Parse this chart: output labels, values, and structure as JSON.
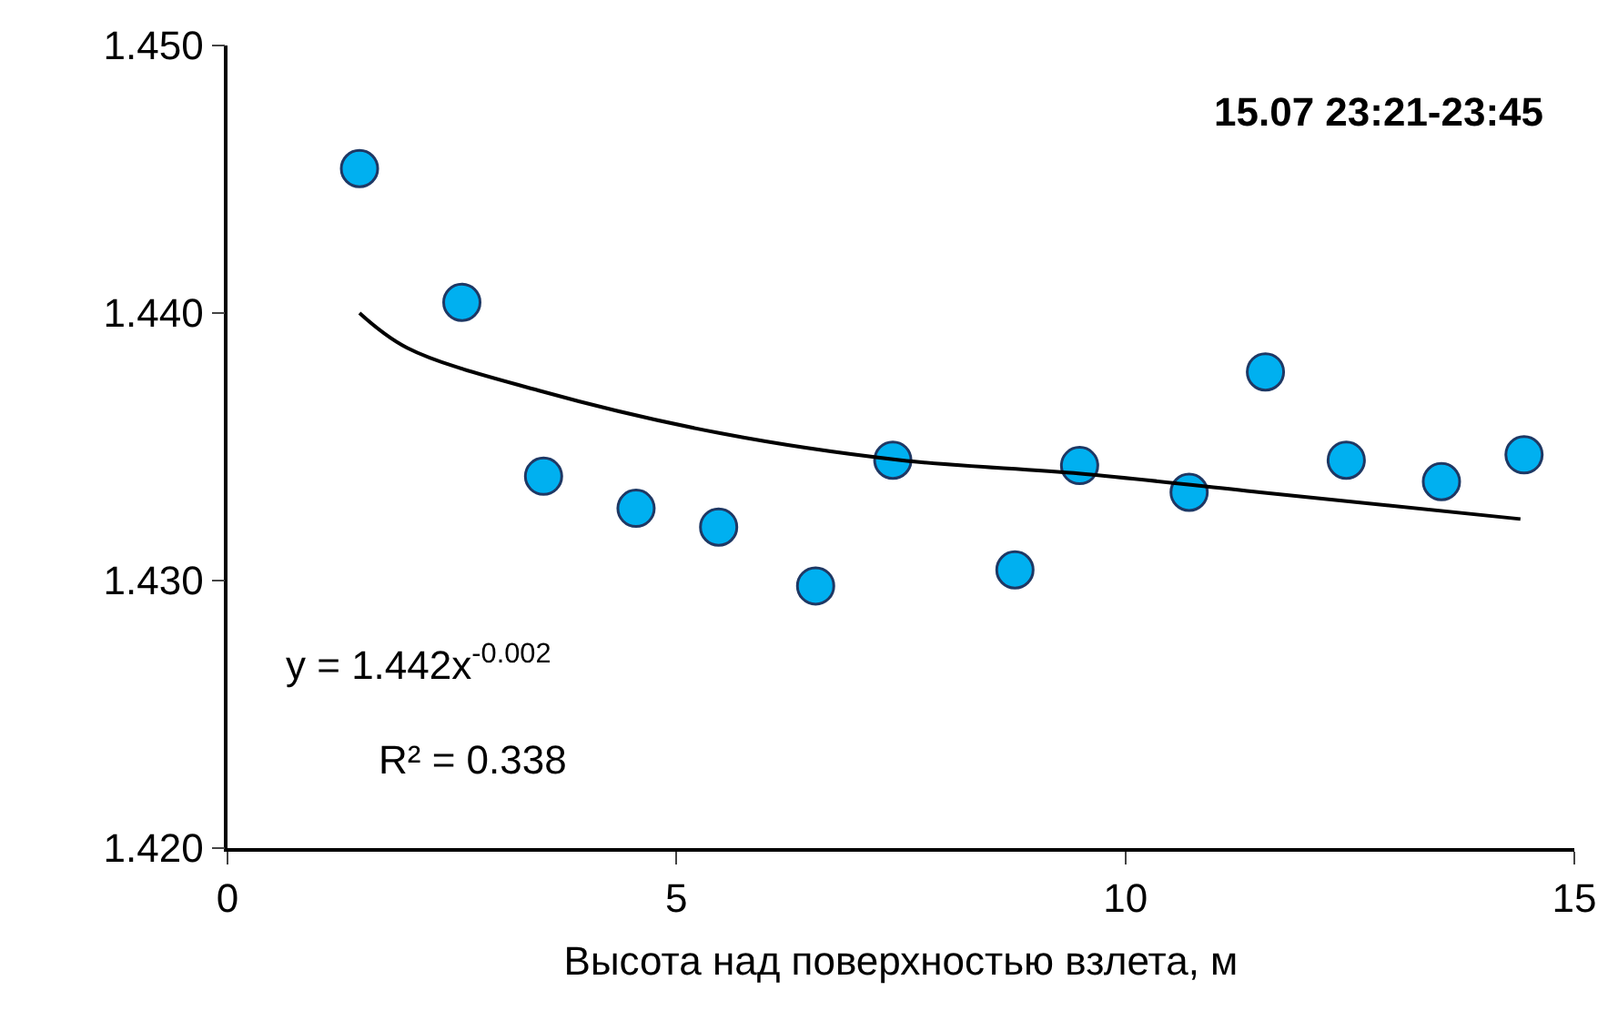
{
  "chart_data": {
    "type": "scatter",
    "title": "15.07 23:21-23:45",
    "xlabel": "Высота над поверхностью взлета, м",
    "xlim": [
      0,
      15
    ],
    "xticks": [
      0,
      5,
      10,
      15
    ],
    "ylim": [
      1.42,
      1.45
    ],
    "yticks": [
      {
        "value": 1.42,
        "label": "1.420"
      },
      {
        "value": 1.43,
        "label": "1.430"
      },
      {
        "value": 1.44,
        "label": "1.440"
      },
      {
        "value": 1.45,
        "label": "1.450"
      }
    ],
    "annotations": [
      "y = 1.442x$^{-0.002}$",
      "R² = 0.338"
    ],
    "series": [
      {
        "marker": "circle",
        "color": "#00b0f0",
        "x": [
          1.47,
          2.61,
          3.52,
          4.55,
          5.47,
          6.55,
          7.41,
          8.77,
          9.49,
          10.71,
          11.56,
          12.46,
          13.52,
          14.44
        ],
        "values": [
          1.4454,
          1.4404,
          1.4339,
          1.4327,
          1.432,
          1.4298,
          1.4345,
          1.4304,
          1.4343,
          1.4333,
          1.4378,
          1.4345,
          1.4337,
          1.4347
        ]
      },
      {
        "type": "line",
        "color": "#000000",
        "x": [
          1.47,
          2.0,
          3.47,
          5.5,
          7.5,
          9.5,
          11.5,
          14.4
        ],
        "values": [
          1.44,
          1.4387,
          1.4371,
          1.4355,
          1.4345,
          1.434,
          1.4333,
          1.4323
        ]
      }
    ]
  }
}
